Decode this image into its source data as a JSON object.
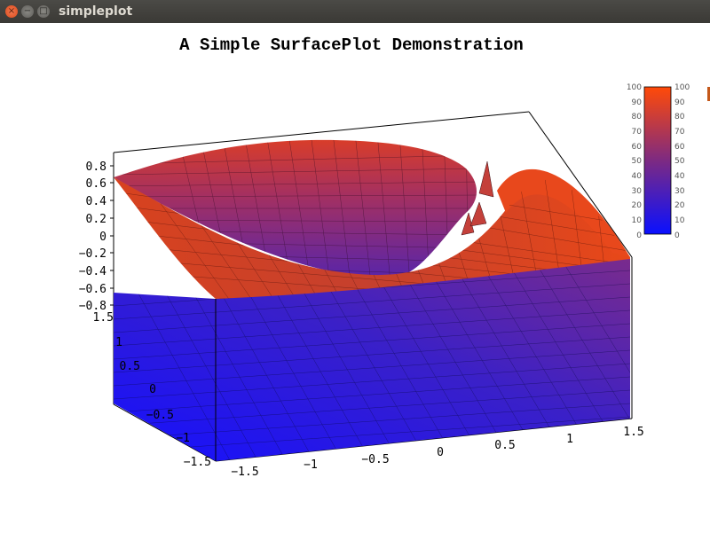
{
  "window": {
    "title": "simpleplot",
    "buttons": {
      "close": "×",
      "minimize": "−",
      "maximize": "□"
    }
  },
  "chart_data": {
    "type": "surface",
    "title": "A Simple SurfacePlot Demonstration",
    "x_ticks": [
      "−1.5",
      "−1",
      "−0.5",
      "0",
      "0.5",
      "1",
      "1.5"
    ],
    "y_ticks": [
      "−1.5",
      "−1",
      "−0.5",
      "0",
      "0.5",
      "1",
      "1.5"
    ],
    "z_ticks": [
      "0.8",
      "0.6",
      "0.4",
      "0.2",
      "0",
      "−0.2",
      "−0.4",
      "−0.6",
      "−0.8"
    ],
    "colorbar": {
      "ticks": [
        "100",
        "90",
        "80",
        "70",
        "60",
        "50",
        "40",
        "30",
        "20",
        "10",
        "0"
      ],
      "range": [
        0,
        100
      ],
      "low_color": "#0a10ff",
      "mid_color": "#7d2a82",
      "high_color": "#ff4a08"
    }
  }
}
